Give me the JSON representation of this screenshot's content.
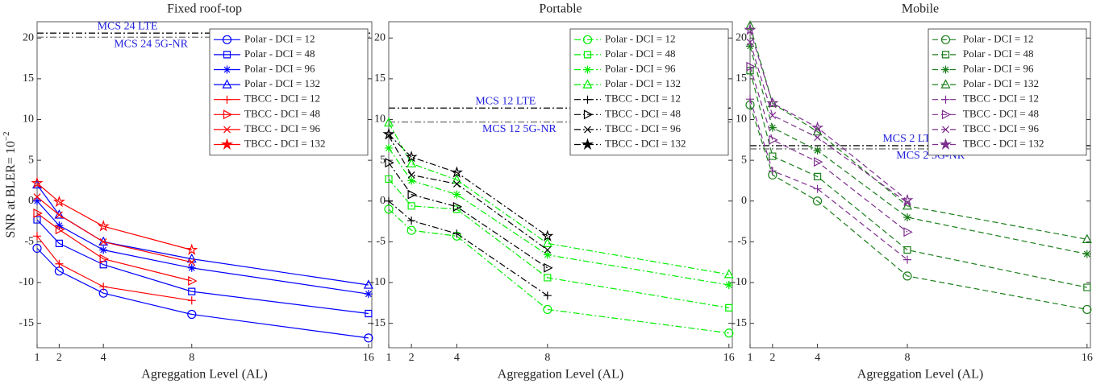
{
  "chart_data": [
    {
      "type": "line",
      "title": "Fixed roof-top",
      "xlabel": "Agreggation Level (AL)",
      "ylabel": {
        "text": "SNR at BLER= 10",
        "superscript": "−2"
      },
      "x": [
        1,
        2,
        4,
        8,
        16
      ],
      "xlim": [
        1,
        16.15
      ],
      "xticks": [
        1,
        2,
        4,
        8,
        16
      ],
      "ylim": [
        -18,
        22
      ],
      "yticks": [
        -15,
        -10,
        -5,
        0,
        5,
        10,
        15,
        20
      ],
      "legend": "upper right",
      "hlines": [
        {
          "label": "MCS 24 LTE",
          "value": 20.6,
          "color": "#333333"
        },
        {
          "label": "MCS 24 5G-NR",
          "value": 20.1,
          "color": "#888888"
        }
      ],
      "series": [
        {
          "name": "Polar - DCI = 12",
          "color": "#0000ff",
          "marker": "o",
          "dash": "solid",
          "values": [
            -5.8,
            -8.6,
            -11.3,
            -13.9,
            -16.8
          ]
        },
        {
          "name": "Polar - DCI = 48",
          "color": "#0000ff",
          "marker": "s",
          "dash": "solid",
          "values": [
            -2.3,
            -5.2,
            -7.8,
            -11.1,
            -13.8
          ]
        },
        {
          "name": "Polar - DCI = 96",
          "color": "#0000ff",
          "marker": "*",
          "dash": "solid",
          "values": [
            0,
            -3.0,
            -6.0,
            -8.2,
            -11.4
          ]
        },
        {
          "name": "Polar - DCI = 132",
          "color": "#0000ff",
          "marker": "^",
          "dash": "solid",
          "values": [
            2.0,
            -1.7,
            -5.0,
            -7.1,
            -10.3
          ]
        },
        {
          "name": "TBCC - DCI = 12",
          "color": "#ff0000",
          "marker": "+",
          "dash": "solid",
          "values": [
            -4.3,
            -7.7,
            -10.5,
            -12.2,
            null
          ]
        },
        {
          "name": "TBCC - DCI = 48",
          "color": "#ff0000",
          "marker": ">",
          "dash": "solid",
          "values": [
            -1.5,
            -3.5,
            -7.1,
            -9.8,
            null
          ]
        },
        {
          "name": "TBCC - DCI = 96",
          "color": "#ff0000",
          "marker": "x",
          "dash": "solid",
          "values": [
            0.5,
            -1.7,
            -5.0,
            -7.5,
            null
          ]
        },
        {
          "name": "TBCC - DCI = 132",
          "color": "#ff0000",
          "marker": "p",
          "dash": "solid",
          "values": [
            2.2,
            -0.1,
            -3.1,
            -6.0,
            null
          ]
        }
      ]
    },
    {
      "type": "line",
      "title": "Portable",
      "xlabel": "Agreggation Level (AL)",
      "x": [
        1,
        2,
        4,
        8,
        16
      ],
      "xlim": [
        1,
        16.15
      ],
      "xticks": [
        1,
        2,
        4,
        8,
        16
      ],
      "ylim": [
        -18,
        22
      ],
      "yticks": [
        -15,
        -10,
        -5,
        0,
        5,
        10,
        15,
        20
      ],
      "legend": "upper right",
      "hlines": [
        {
          "label": "MCS 12 LTE",
          "value": 11.4,
          "color": "#333333"
        },
        {
          "label": "MCS 12 5G-NR",
          "value": 9.7,
          "color": "#888888"
        }
      ],
      "series": [
        {
          "name": "Polar - DCI = 12",
          "color": "#00ee00",
          "marker": "o",
          "dash": "dashdot",
          "values": [
            -1.0,
            -3.6,
            -4.3,
            -13.3,
            -16.2
          ]
        },
        {
          "name": "Polar - DCI = 48",
          "color": "#00ee00",
          "marker": "s",
          "dash": "dashdot",
          "values": [
            2.7,
            -0.6,
            -1.0,
            -9.4,
            -13.1
          ]
        },
        {
          "name": "Polar - DCI = 96",
          "color": "#00ee00",
          "marker": "*",
          "dash": "dashdot",
          "values": [
            6.5,
            2.5,
            0.8,
            -6.6,
            -10.3
          ]
        },
        {
          "name": "Polar - DCI = 132",
          "color": "#00ee00",
          "marker": "^",
          "dash": "dashdot",
          "values": [
            9.6,
            4.6,
            2.6,
            -5.2,
            -9.0
          ]
        },
        {
          "name": "TBCC - DCI = 12",
          "color": "#000000",
          "marker": "+",
          "dash": "dashdot",
          "values": [
            0,
            -2.4,
            -4.0,
            -11.6,
            null
          ]
        },
        {
          "name": "TBCC - DCI = 48",
          "color": "#000000",
          "marker": ">",
          "dash": "dashdot",
          "values": [
            4.7,
            0.8,
            -0.7,
            -8.2,
            null
          ]
        },
        {
          "name": "TBCC - DCI = 96",
          "color": "#000000",
          "marker": "x",
          "dash": "dashdot",
          "values": [
            8.0,
            3.2,
            2.1,
            -6.0,
            null
          ]
        },
        {
          "name": "TBCC - DCI = 132",
          "color": "#000000",
          "marker": "p",
          "dash": "dashdot",
          "values": [
            8.2,
            5.4,
            3.5,
            -4.3,
            null
          ]
        }
      ]
    },
    {
      "type": "line",
      "title": "Mobile",
      "xlabel": "Agreggation Level (AL)",
      "x": [
        1,
        2,
        4,
        8,
        16
      ],
      "xlim": [
        1,
        16.15
      ],
      "xticks": [
        1,
        2,
        4,
        8,
        16
      ],
      "ylim": [
        -18,
        22
      ],
      "yticks": [
        -15,
        -10,
        -5,
        0,
        5,
        10,
        15,
        20
      ],
      "legend": "upper right",
      "hlines": [
        {
          "label": "MCS 2 LTE",
          "value": 6.8,
          "color": "#333333"
        },
        {
          "label": "MCS 2 5G-NR",
          "value": 6.4,
          "color": "#888888"
        }
      ],
      "series": [
        {
          "name": "Polar - DCI = 12",
          "color": "#1a7f1a",
          "marker": "o",
          "dash": "dashed",
          "values": [
            11.8,
            3.2,
            0,
            -9.2,
            -13.3
          ]
        },
        {
          "name": "Polar - DCI = 48",
          "color": "#1a7f1a",
          "marker": "s",
          "dash": "dashed",
          "values": [
            16.0,
            5.5,
            3.0,
            -6.0,
            -10.6
          ]
        },
        {
          "name": "Polar - DCI = 96",
          "color": "#1a7f1a",
          "marker": "*",
          "dash": "dashed",
          "values": [
            19.0,
            9.0,
            6.2,
            -2.0,
            -6.5
          ]
        },
        {
          "name": "Polar - DCI = 132",
          "color": "#1a7f1a",
          "marker": "^",
          "dash": "dashed",
          "values": [
            21.5,
            12.0,
            8.5,
            -0.6,
            -4.7
          ]
        },
        {
          "name": "TBCC - DCI = 12",
          "color": "#7e2f8e",
          "marker": "+",
          "dash": "dashed",
          "values": [
            12.5,
            3.7,
            1.5,
            -7.2,
            null
          ]
        },
        {
          "name": "TBCC - DCI = 48",
          "color": "#7e2f8e",
          "marker": ">",
          "dash": "dashed",
          "values": [
            16.5,
            7.5,
            4.8,
            -3.8,
            null
          ]
        },
        {
          "name": "TBCC - DCI = 96",
          "color": "#7e2f8e",
          "marker": "x",
          "dash": "dashed",
          "values": [
            19.5,
            10.5,
            7.8,
            -0.2,
            null
          ]
        },
        {
          "name": "TBCC - DCI = 132",
          "color": "#7e2f8e",
          "marker": "p",
          "dash": "dashed",
          "values": [
            21.0,
            12.0,
            9.0,
            0.1,
            null
          ]
        }
      ]
    }
  ]
}
